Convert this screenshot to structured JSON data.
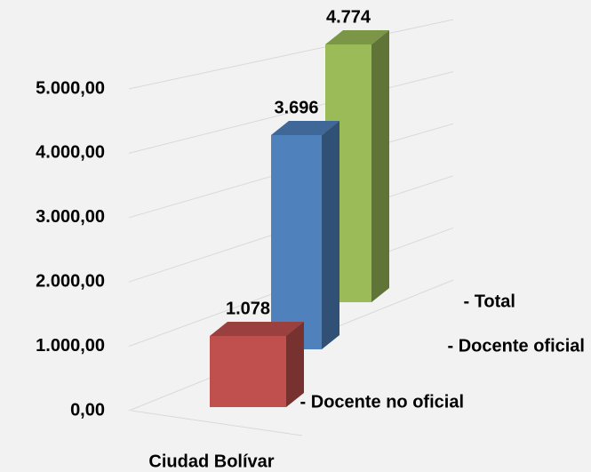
{
  "chart_data": {
    "type": "bar3d",
    "categories": [
      "Ciudad Bolívar"
    ],
    "series": [
      {
        "name": "- Docente no oficial",
        "color": "#c0504d",
        "values": [
          1078
        ],
        "value_labels": [
          "1.078"
        ]
      },
      {
        "name": "- Docente oficial",
        "color": "#4f81bd",
        "values": [
          3696
        ],
        "value_labels": [
          "3.696"
        ]
      },
      {
        "name": "- Total",
        "color": "#9bbb59",
        "values": [
          4774
        ],
        "value_labels": [
          "4.774"
        ]
      }
    ],
    "ylim": [
      0,
      5000
    ],
    "yticks": [
      {
        "value": 0,
        "label": "0,00"
      },
      {
        "value": 1000,
        "label": "1.000,00"
      },
      {
        "value": 2000,
        "label": "2.000,00"
      },
      {
        "value": 3000,
        "label": "3.000,00"
      },
      {
        "value": 4000,
        "label": "4.000,00"
      },
      {
        "value": 5000,
        "label": "5.000,00"
      }
    ],
    "grid": true
  }
}
